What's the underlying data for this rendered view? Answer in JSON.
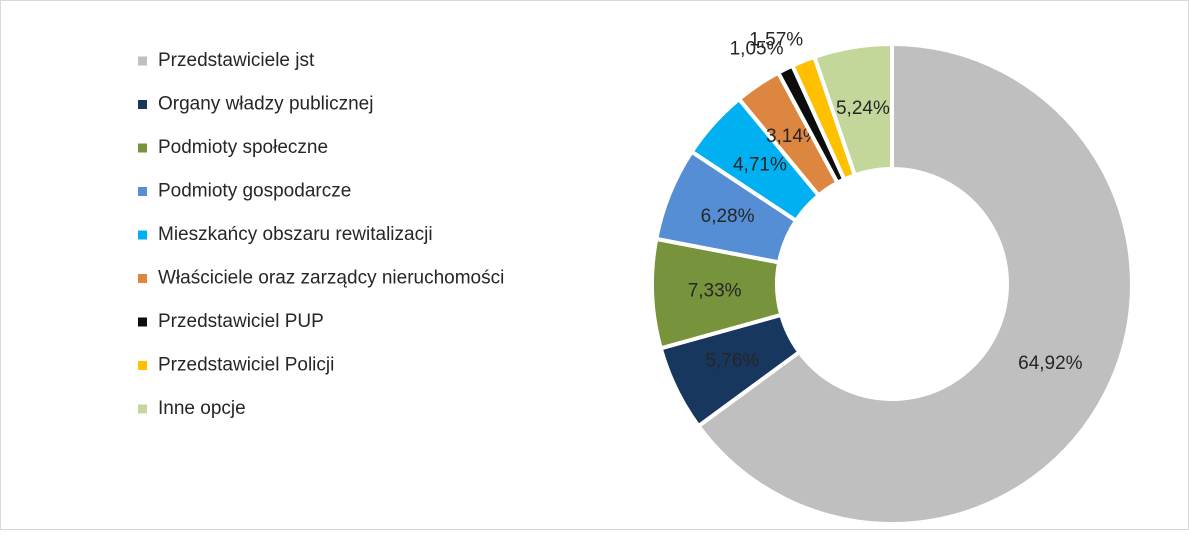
{
  "chart_data": {
    "type": "donut",
    "categories": [
      "Przedstawiciele jst",
      "Organy władzy publicznej",
      "Podmioty społeczne",
      "Podmioty gospodarcze",
      "Mieszkańcy obszaru rewitalizacji",
      "Właściciele oraz zarządcy nieruchomości",
      "Przedstawiciel PUP",
      "Przedstawiciel Policji",
      "Inne opcje"
    ],
    "values": [
      64.92,
      5.76,
      7.33,
      6.28,
      4.71,
      3.14,
      1.05,
      1.57,
      5.24
    ],
    "value_labels": [
      "64,92%",
      "5,76%",
      "7,33%",
      "6,28%",
      "4,71%",
      "3,14%",
      "1,05%",
      "1,57%",
      "5,24%"
    ],
    "colors": [
      "#bfbfbf",
      "#17375e",
      "#77933c",
      "#558ed5",
      "#00b0f0",
      "#dd8640",
      "#0d0d0d",
      "#ffc000",
      "#c4d79b"
    ],
    "legend": "left"
  }
}
